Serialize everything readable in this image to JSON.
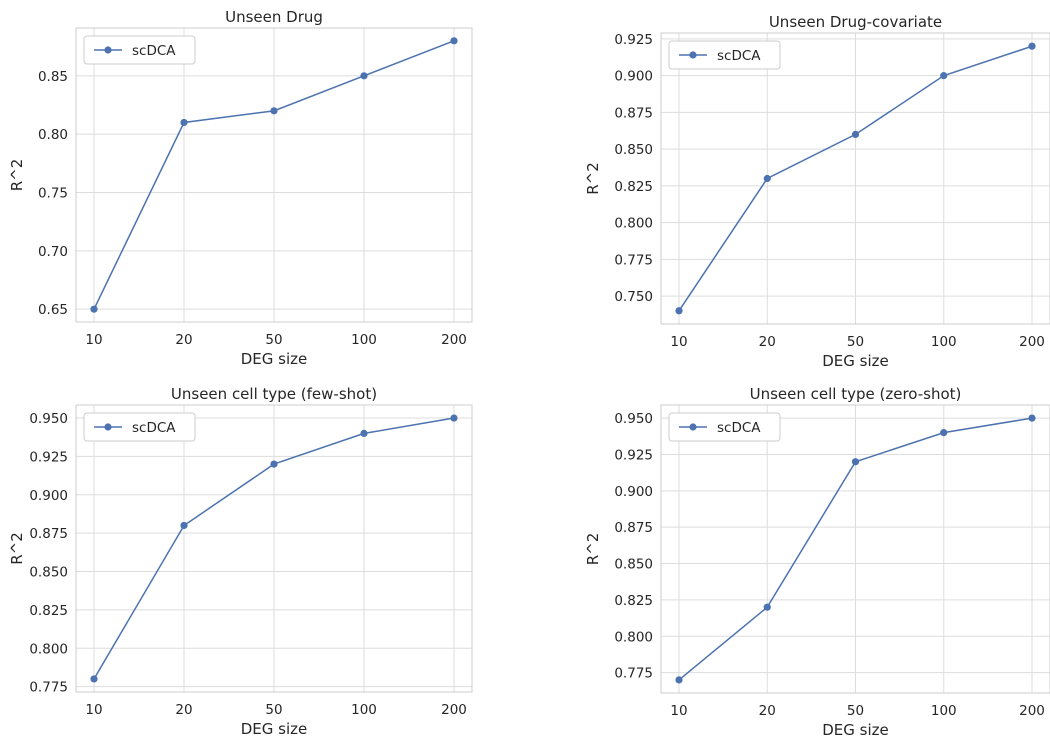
{
  "chart_data": [
    {
      "type": "line",
      "title": "Unseen Drug",
      "xlabel": "DEG size",
      "ylabel": "R^2",
      "categories": [
        "10",
        "20",
        "50",
        "100",
        "200"
      ],
      "series": [
        {
          "name": "scDCA",
          "values": [
            0.65,
            0.81,
            0.82,
            0.85,
            0.88
          ]
        }
      ],
      "yticks": [
        "0.65",
        "0.70",
        "0.75",
        "0.80",
        "0.85"
      ],
      "ylim": [
        0.639,
        0.891
      ],
      "legend": "top-left",
      "grid": true,
      "color": "#4c72b0"
    },
    {
      "type": "line",
      "title": "Unseen Drug-covariate",
      "xlabel": "DEG size",
      "ylabel": "R^2",
      "categories": [
        "10",
        "20",
        "50",
        "100",
        "200"
      ],
      "series": [
        {
          "name": "scDCA",
          "values": [
            0.74,
            0.83,
            0.86,
            0.9,
            0.92
          ]
        }
      ],
      "yticks": [
        "0.750",
        "0.775",
        "0.800",
        "0.825",
        "0.850",
        "0.875",
        "0.900",
        "0.925"
      ],
      "ylim": [
        0.731,
        0.929
      ],
      "legend": "top-left",
      "grid": true,
      "color": "#4c72b0"
    },
    {
      "type": "line",
      "title": "Unseen cell type (few-shot)",
      "xlabel": "DEG size",
      "ylabel": "R^2",
      "categories": [
        "10",
        "20",
        "50",
        "100",
        "200"
      ],
      "series": [
        {
          "name": "scDCA",
          "values": [
            0.78,
            0.88,
            0.92,
            0.94,
            0.95
          ]
        }
      ],
      "yticks": [
        "0.775",
        "0.800",
        "0.825",
        "0.850",
        "0.875",
        "0.900",
        "0.925",
        "0.950"
      ],
      "ylim": [
        0.7715,
        0.9585
      ],
      "legend": "top-left",
      "grid": true,
      "color": "#4c72b0"
    },
    {
      "type": "line",
      "title": "Unseen cell type (zero-shot)",
      "xlabel": "DEG size",
      "ylabel": "R^2",
      "categories": [
        "10",
        "20",
        "50",
        "100",
        "200"
      ],
      "series": [
        {
          "name": "scDCA",
          "values": [
            0.77,
            0.82,
            0.92,
            0.94,
            0.95
          ]
        }
      ],
      "yticks": [
        "0.775",
        "0.800",
        "0.825",
        "0.850",
        "0.875",
        "0.900",
        "0.925",
        "0.950"
      ],
      "ylim": [
        0.761,
        0.959
      ],
      "legend": "top-left",
      "grid": true,
      "color": "#4c72b0"
    }
  ]
}
